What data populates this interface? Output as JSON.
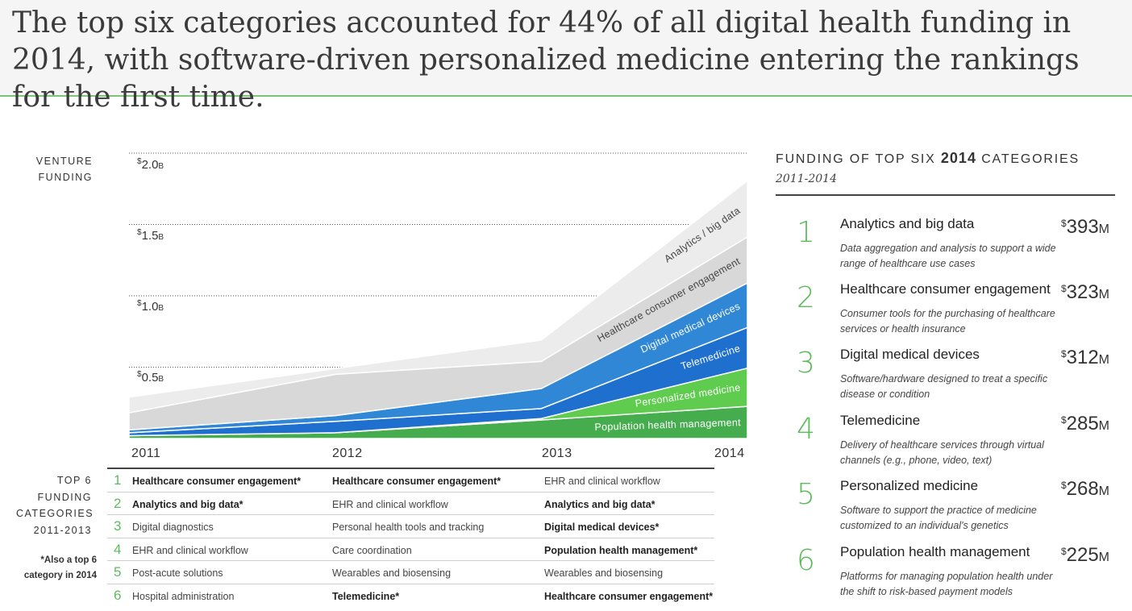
{
  "header": {
    "title": "The top six categories accounted for 44% of all digital health funding in 2014, with software-driven personalized medicine entering the rankings for the first time."
  },
  "chart_data": {
    "type": "area",
    "stacked": true,
    "ylabel_lines": [
      "VENTURE",
      "FUNDING"
    ],
    "x": [
      "2011",
      "2012",
      "2013",
      "2014"
    ],
    "y_ticks": [
      {
        "value": 0.5,
        "label": "0.5",
        "unit": "B",
        "currency": "$"
      },
      {
        "value": 1.0,
        "label": "1.0",
        "unit": "B",
        "currency": "$"
      },
      {
        "value": 1.5,
        "label": "1.5",
        "unit": "B",
        "currency": "$"
      },
      {
        "value": 2.0,
        "label": "2.0",
        "unit": "B",
        "currency": "$"
      }
    ],
    "ylim": [
      0,
      2.0
    ],
    "grid": "dotted",
    "series": [
      {
        "name": "Population health management",
        "values": [
          0.02,
          0.04,
          0.13,
          0.225
        ],
        "color": "#45ad4e"
      },
      {
        "name": "Personalized medicine",
        "values": [
          0.0,
          0.0,
          0.01,
          0.268
        ],
        "color": "#5fcc4f"
      },
      {
        "name": "Telemedicine",
        "values": [
          0.02,
          0.08,
          0.07,
          0.285
        ],
        "color": "#1f6fcf"
      },
      {
        "name": "Digital medical devices",
        "values": [
          0.02,
          0.04,
          0.14,
          0.312
        ],
        "color": "#2f87d6"
      },
      {
        "name": "Healthcare consumer engagement",
        "values": [
          0.12,
          0.29,
          0.19,
          0.323
        ],
        "color": "#d8d8d8"
      },
      {
        "name": "Analytics / big data",
        "values": [
          0.11,
          0.04,
          0.15,
          0.393
        ],
        "color": "#ececec"
      }
    ]
  },
  "top6_table": {
    "label_lines": [
      "TOP 6",
      "FUNDING",
      "CATEGORIES",
      "2011-2013"
    ],
    "note_lines": [
      "*Also a top 6",
      "category in 2014"
    ],
    "ranks": [
      "1",
      "2",
      "3",
      "4",
      "5",
      "6"
    ],
    "columns": [
      {
        "year": "2011",
        "items": [
          {
            "text": "Healthcare consumer engagement*",
            "bold": true
          },
          {
            "text": "Analytics and big data*",
            "bold": true
          },
          {
            "text": "Digital diagnostics",
            "bold": false
          },
          {
            "text": "EHR and clinical workflow",
            "bold": false
          },
          {
            "text": "Post-acute solutions",
            "bold": false
          },
          {
            "text": "Hospital administration",
            "bold": false
          }
        ]
      },
      {
        "year": "2012",
        "items": [
          {
            "text": "Healthcare consumer engagement*",
            "bold": true
          },
          {
            "text": "EHR and clinical workflow",
            "bold": false
          },
          {
            "text": "Personal health tools and tracking",
            "bold": false
          },
          {
            "text": "Care coordination",
            "bold": false
          },
          {
            "text": "Wearables and biosensing",
            "bold": false
          },
          {
            "text": "Telemedicine*",
            "bold": true
          }
        ]
      },
      {
        "year": "2013",
        "items": [
          {
            "text": "EHR and clinical workflow",
            "bold": false
          },
          {
            "text": "Analytics and big data*",
            "bold": true
          },
          {
            "text": "Digital medical devices*",
            "bold": true
          },
          {
            "text": "Population health management*",
            "bold": true
          },
          {
            "text": "Wearables and biosensing",
            "bold": false
          },
          {
            "text": "Healthcare consumer engagement*",
            "bold": true
          }
        ]
      }
    ]
  },
  "right_panel": {
    "title_pre": "FUNDING OF TOP SIX ",
    "title_year": "2014",
    "title_post": " CATEGORIES",
    "subtitle": "2011-2014",
    "currency": "$",
    "unit": "M",
    "categories": [
      {
        "rank": "1",
        "name": "Analytics and big data",
        "amount": "393",
        "desc": "Data aggregation and analysis to support a wide range of healthcare use cases"
      },
      {
        "rank": "2",
        "name": "Healthcare consumer engagement",
        "amount": "323",
        "desc": "Consumer tools for the purchasing of healthcare services or health insurance"
      },
      {
        "rank": "3",
        "name": "Digital medical devices",
        "amount": "312",
        "desc": "Software/hardware designed to treat a specific disease or condition"
      },
      {
        "rank": "4",
        "name": "Telemedicine",
        "amount": "285",
        "desc": "Delivery of healthcare services through virtual channels (e.g., phone, video, text)"
      },
      {
        "rank": "5",
        "name": "Personalized medicine",
        "amount": "268",
        "desc": "Software to support the practice of medicine customized to an individual's genetics"
      },
      {
        "rank": "6",
        "name": "Population health management",
        "amount": "225",
        "desc": "Platforms for managing population health under the shift to risk-based payment models"
      }
    ]
  }
}
